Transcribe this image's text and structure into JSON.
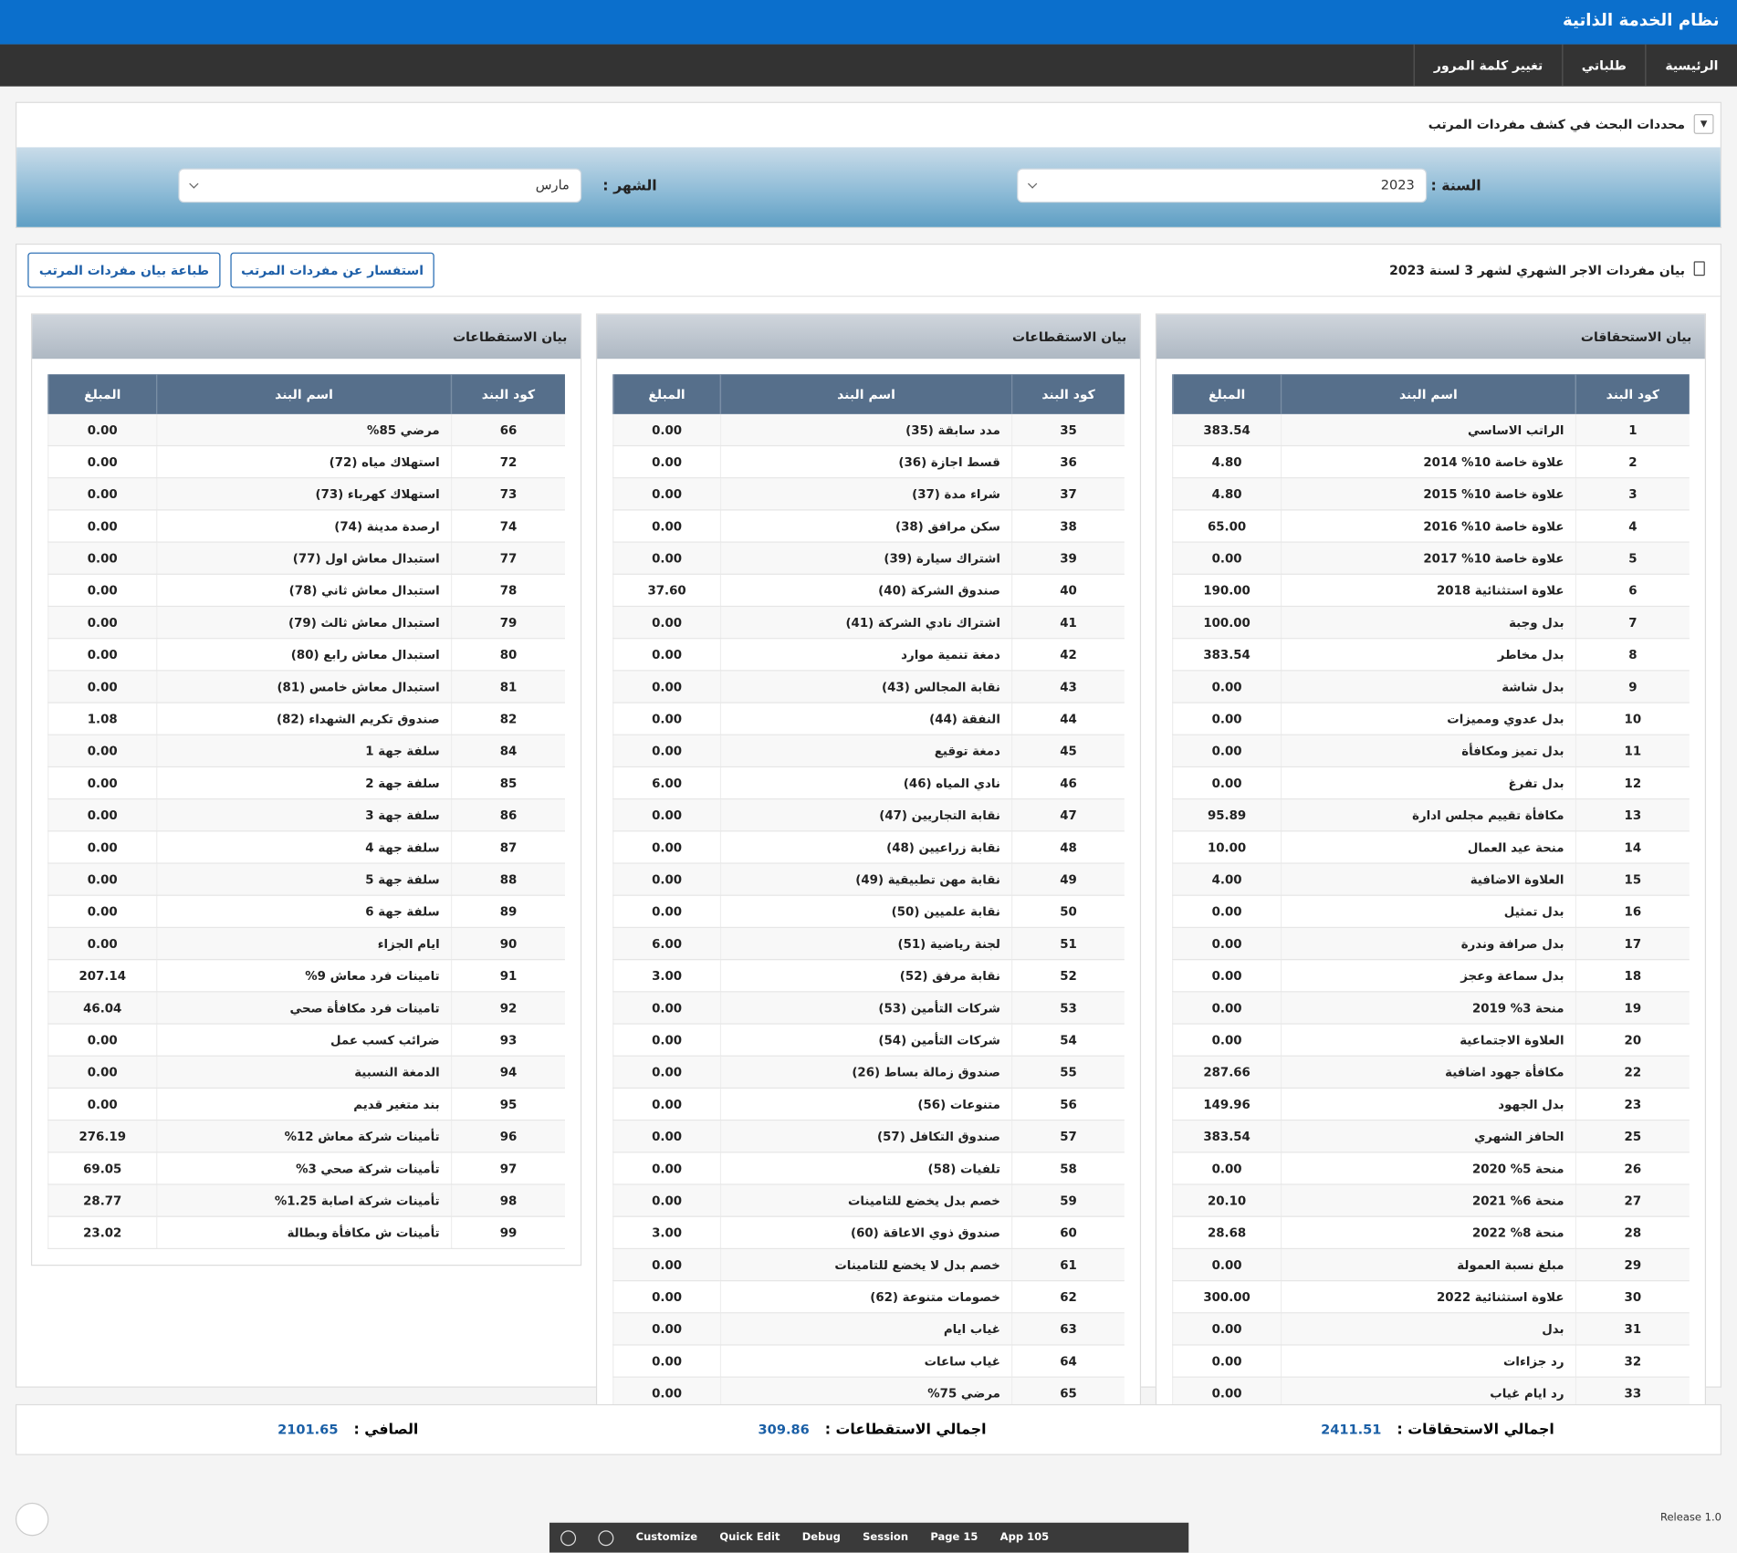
{
  "header": {
    "title": "نظام الخدمة الذاتية"
  },
  "nav": [
    "الرئيسية",
    "طلباتي",
    "تغيير كلمة المرور"
  ],
  "search": {
    "title": "محددات البحث في كشف مفردات المرتب",
    "year_label": "السنة :",
    "year": "2023",
    "month_label": "الشهر :",
    "month": "مارس"
  },
  "report": {
    "title": "بيان مفردات الاجر الشهري لشهر 3 لسنة 2023",
    "buttons": [
      "استفسار عن مفردات المرتب",
      "طباعة بيان مفردات المرتب"
    ]
  },
  "tables": [
    {
      "title": "بيان الاستحقاقات",
      "headers": [
        "كود البند",
        "اسم البند",
        "المبلغ"
      ],
      "rows": [
        [
          1,
          "الراتب الاساسي",
          "383.54"
        ],
        [
          2,
          "علاوة خاصة 10% 2014",
          "4.80"
        ],
        [
          3,
          "علاوة خاصة 10% 2015",
          "4.80"
        ],
        [
          4,
          "علاوة خاصة 10% 2016",
          "65.00"
        ],
        [
          5,
          "علاوة خاصة 10% 2017",
          "0.00"
        ],
        [
          6,
          "علاوة استثنائية 2018",
          "190.00"
        ],
        [
          7,
          "بدل وجبة",
          "100.00"
        ],
        [
          8,
          "بدل مخاطر",
          "383.54"
        ],
        [
          9,
          "بدل شاشة",
          "0.00"
        ],
        [
          10,
          "بدل عدوي ومميزات",
          "0.00"
        ],
        [
          11,
          "بدل تميز ومكافأة",
          "0.00"
        ],
        [
          12,
          "بدل تفرغ",
          "0.00"
        ],
        [
          13,
          "مكافأة تقييم مجلس ادارة",
          "95.89"
        ],
        [
          14,
          "منحة عيد العمال",
          "10.00"
        ],
        [
          15,
          "العلاوة الاضافية",
          "4.00"
        ],
        [
          16,
          "بدل تمثيل",
          "0.00"
        ],
        [
          17,
          "بدل صرافة وندرة",
          "0.00"
        ],
        [
          18,
          "بدل سماعة وعجز",
          "0.00"
        ],
        [
          19,
          "منحة 3% 2019",
          "0.00"
        ],
        [
          20,
          "العلاوة الاجتماعية",
          "0.00"
        ],
        [
          22,
          "مكافأة جهود اضافية",
          "287.66"
        ],
        [
          23,
          "بدل الجهود",
          "149.96"
        ],
        [
          25,
          "الحافز الشهري",
          "383.54"
        ],
        [
          26,
          "منحة 5% 2020",
          "0.00"
        ],
        [
          27,
          "منحة 6% 2021",
          "20.10"
        ],
        [
          28,
          "منحة 8% 2022",
          "28.68"
        ],
        [
          29,
          "مبلغ نسبة العمولة",
          "0.00"
        ],
        [
          30,
          "علاوة استثنائية 2022",
          "300.00"
        ],
        [
          31,
          "بدل",
          "0.00"
        ],
        [
          32,
          "رد جزاءات",
          "0.00"
        ],
        [
          33,
          "رد ايام غياب",
          "0.00"
        ]
      ]
    },
    {
      "title": "بيان الاستقطاعات",
      "headers": [
        "كود البند",
        "اسم البند",
        "المبلغ"
      ],
      "rows": [
        [
          35,
          "مدد سابقة (35)",
          "0.00"
        ],
        [
          36,
          "قسط اجازة (36)",
          "0.00"
        ],
        [
          37,
          "شراء مدة (37)",
          "0.00"
        ],
        [
          38,
          "سكن مرافق (38)",
          "0.00"
        ],
        [
          39,
          "اشتراك سيارة (39)",
          "0.00"
        ],
        [
          40,
          "صندوق الشركة (40)",
          "37.60"
        ],
        [
          41,
          "اشتراك نادي الشركة (41)",
          "0.00"
        ],
        [
          42,
          "دمغة تنمية موارد",
          "0.00"
        ],
        [
          43,
          "نقابة المجالس (43)",
          "0.00"
        ],
        [
          44,
          "النفقة (44)",
          "0.00"
        ],
        [
          45,
          "دمغة توقيع",
          "0.00"
        ],
        [
          46,
          "نادي المياه (46)",
          "6.00"
        ],
        [
          47,
          "نقابة التجاريين (47)",
          "0.00"
        ],
        [
          48,
          "نقابة زراعيين (48)",
          "0.00"
        ],
        [
          49,
          "نقابة مهن تطبيقية (49)",
          "0.00"
        ],
        [
          50,
          "نقابة علميين (50)",
          "0.00"
        ],
        [
          51,
          "لجنة رياضية (51)",
          "6.00"
        ],
        [
          52,
          "نقابة مرفق (52)",
          "3.00"
        ],
        [
          53,
          "شركات التأمين (53)",
          "0.00"
        ],
        [
          54,
          "شركات التأمين (54)",
          "0.00"
        ],
        [
          55,
          "صندوق زمالة بساط (26)",
          "0.00"
        ],
        [
          56,
          "متنوعات (56)",
          "0.00"
        ],
        [
          57,
          "صندوق التكافل (57)",
          "0.00"
        ],
        [
          58,
          "تلفيات (58)",
          "0.00"
        ],
        [
          59,
          "خصم بدل يخضع للتامينات",
          "0.00"
        ],
        [
          60,
          "صندوق ذوي الاعاقة (60)",
          "3.00"
        ],
        [
          61,
          "خصم بدل لا يخضع للتامينات",
          "0.00"
        ],
        [
          62,
          "خصومات متنوعة (62)",
          "0.00"
        ],
        [
          63,
          "غياب ايام",
          "0.00"
        ],
        [
          64,
          "غياب ساعات",
          "0.00"
        ],
        [
          65,
          "مرضي 75%",
          "0.00"
        ]
      ]
    },
    {
      "title": "بيان الاستقطاعات",
      "headers": [
        "كود البند",
        "اسم البند",
        "المبلغ"
      ],
      "rows": [
        [
          66,
          "مرضي 85%",
          "0.00"
        ],
        [
          72,
          "استهلاك مياه (72)",
          "0.00"
        ],
        [
          73,
          "استهلاك كهرباء (73)",
          "0.00"
        ],
        [
          74,
          "ارصدة مدينة (74)",
          "0.00"
        ],
        [
          77,
          "استبدال معاش اول (77)",
          "0.00"
        ],
        [
          78,
          "استبدال معاش ثاني (78)",
          "0.00"
        ],
        [
          79,
          "استبدال معاش ثالث (79)",
          "0.00"
        ],
        [
          80,
          "استبدال معاش رابع (80)",
          "0.00"
        ],
        [
          81,
          "استبدال معاش خامس (81)",
          "0.00"
        ],
        [
          82,
          "صندوق تكريم الشهداء (82)",
          "1.08"
        ],
        [
          84,
          "سلفة جهة 1",
          "0.00"
        ],
        [
          85,
          "سلفة جهة 2",
          "0.00"
        ],
        [
          86,
          "سلفة جهة 3",
          "0.00"
        ],
        [
          87,
          "سلفة جهة 4",
          "0.00"
        ],
        [
          88,
          "سلفة جهة 5",
          "0.00"
        ],
        [
          89,
          "سلفة جهة 6",
          "0.00"
        ],
        [
          90,
          "ايام الجزاء",
          "0.00"
        ],
        [
          91,
          "تامينات فرد معاش 9%",
          "207.14"
        ],
        [
          92,
          "تامينات فرد مكافأة صحي",
          "46.04"
        ],
        [
          93,
          "ضرائب كسب عمل",
          "0.00"
        ],
        [
          94,
          "الدمغة النسبية",
          "0.00"
        ],
        [
          95,
          "بند متغير قديم",
          "0.00"
        ],
        [
          96,
          "تأمينات شركة معاش 12%",
          "276.19"
        ],
        [
          97,
          "تأمينات شركة صحي 3%",
          "69.05"
        ],
        [
          98,
          "تأمينات شركة اصابة 1.25%",
          "28.77"
        ],
        [
          99,
          "تأمينات ش مكافأة وبطالة",
          "23.02"
        ]
      ]
    }
  ],
  "totals": [
    {
      "label": "اجمالي الاستحقاقات :",
      "value": "2411.51"
    },
    {
      "label": "اجمالي الاستقطاعات :",
      "value": "309.86"
    },
    {
      "label": "الصافي :",
      "value": "2101.65"
    }
  ],
  "footer": {
    "release": "Release 1.0",
    "toolbar": [
      "Customize",
      "Quick Edit",
      "Debug",
      "Session",
      "Page 15",
      "App 105"
    ]
  }
}
